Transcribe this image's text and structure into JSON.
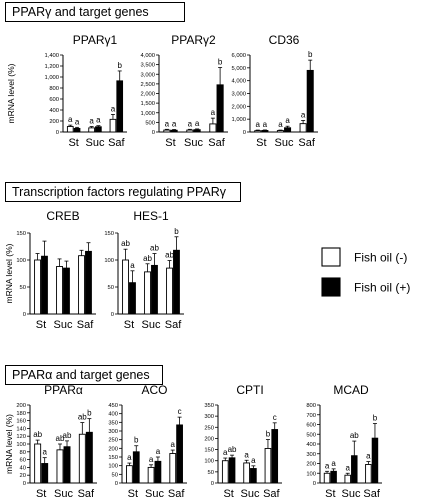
{
  "sections": [
    {
      "title": "PPARγ and target genes"
    },
    {
      "title": "Transcription factors regulating PPARγ"
    },
    {
      "title": "PPARα and target genes"
    }
  ],
  "legend": {
    "items": [
      {
        "label": "Fish oil (-)",
        "fill": "#ffffff"
      },
      {
        "label": "Fish oil (+)",
        "fill": "#000000"
      }
    ]
  },
  "chart_data": [
    {
      "type": "bar",
      "title": "PPARγ1",
      "ylabel": "mRNA level (%)",
      "ylim": [
        0,
        1400
      ],
      "yticks": [
        0,
        200,
        400,
        600,
        800,
        1000,
        1200,
        1400
      ],
      "categories": [
        "St",
        "Suc",
        "Saf"
      ],
      "series": [
        {
          "name": "Fish oil (-)",
          "values": [
            100,
            75,
            230
          ],
          "errors": [
            25,
            25,
            90
          ],
          "letters": [
            "a",
            "a",
            "a"
          ]
        },
        {
          "name": "Fish oil (+)",
          "values": [
            65,
            95,
            930
          ],
          "errors": [
            20,
            20,
            180
          ],
          "letters": [
            "a",
            "a",
            "b"
          ]
        }
      ]
    },
    {
      "type": "bar",
      "title": "PPARγ2",
      "ylabel": "",
      "ylim": [
        0,
        4000
      ],
      "yticks": [
        0,
        500,
        1000,
        1500,
        2000,
        2500,
        3000,
        3500,
        4000
      ],
      "categories": [
        "St",
        "Suc",
        "Saf"
      ],
      "series": [
        {
          "name": "Fish oil (-)",
          "values": [
            100,
            100,
            420
          ],
          "errors": [
            40,
            40,
            300
          ],
          "letters": [
            "a",
            "a",
            "a"
          ]
        },
        {
          "name": "Fish oil (+)",
          "values": [
            90,
            120,
            2450
          ],
          "errors": [
            40,
            40,
            900
          ],
          "letters": [
            "a",
            "a",
            "b"
          ]
        }
      ]
    },
    {
      "type": "bar",
      "title": "CD36",
      "ylabel": "",
      "ylim": [
        0,
        6000
      ],
      "yticks": [
        0,
        1000,
        2000,
        3000,
        4000,
        5000,
        6000
      ],
      "categories": [
        "St",
        "Suc",
        "Saf"
      ],
      "series": [
        {
          "name": "Fish oil (-)",
          "values": [
            100,
            110,
            650
          ],
          "errors": [
            50,
            40,
            250
          ],
          "letters": [
            "a",
            "a",
            "a"
          ]
        },
        {
          "name": "Fish oil (+)",
          "values": [
            120,
            330,
            4800
          ],
          "errors": [
            40,
            120,
            800
          ],
          "letters": [
            "a",
            "a",
            "b"
          ]
        }
      ]
    },
    {
      "type": "bar",
      "title": "CREB",
      "ylabel": "mRNA level (%)",
      "ylim": [
        0,
        150
      ],
      "yticks": [
        0,
        50,
        100,
        150
      ],
      "categories": [
        "St",
        "Suc",
        "Saf"
      ],
      "series": [
        {
          "name": "Fish oil (-)",
          "values": [
            100,
            88,
            108
          ],
          "errors": [
            12,
            14,
            10
          ],
          "letters": [
            "",
            "",
            ""
          ]
        },
        {
          "name": "Fish oil (+)",
          "values": [
            107,
            85,
            116
          ],
          "errors": [
            28,
            13,
            16
          ],
          "letters": [
            "",
            "",
            ""
          ]
        }
      ]
    },
    {
      "type": "bar",
      "title": "HES-1",
      "ylabel": "",
      "ylim": [
        0,
        150
      ],
      "yticks": [
        0,
        50,
        100,
        150
      ],
      "categories": [
        "St",
        "Suc",
        "Saf"
      ],
      "series": [
        {
          "name": "Fish oil (-)",
          "values": [
            100,
            78,
            85
          ],
          "errors": [
            20,
            15,
            14
          ],
          "letters": [
            "ab",
            "ab",
            "ab"
          ]
        },
        {
          "name": "Fish oil (+)",
          "values": [
            58,
            90,
            118
          ],
          "errors": [
            22,
            22,
            25
          ],
          "letters": [
            "a",
            "ab",
            "b"
          ]
        }
      ]
    },
    {
      "type": "bar",
      "title": "PPARα",
      "ylabel": "mRNA level (%)",
      "ylim": [
        0,
        200
      ],
      "yticks": [
        0,
        20,
        40,
        60,
        80,
        100,
        120,
        140,
        160,
        180,
        200
      ],
      "categories": [
        "St",
        "Suc",
        "Saf"
      ],
      "series": [
        {
          "name": "Fish oil (-)",
          "values": [
            100,
            85,
            125
          ],
          "errors": [
            10,
            15,
            30
          ],
          "letters": [
            "ab",
            "ab",
            "ab"
          ]
        },
        {
          "name": "Fish oil (+)",
          "values": [
            50,
            93,
            130
          ],
          "errors": [
            15,
            15,
            35
          ],
          "letters": [
            "a",
            "ab",
            "b"
          ]
        }
      ]
    },
    {
      "type": "bar",
      "title": "ACO",
      "ylabel": "",
      "ylim": [
        0,
        450
      ],
      "yticks": [
        0,
        50,
        100,
        150,
        200,
        250,
        300,
        350,
        400,
        450
      ],
      "categories": [
        "St",
        "Suc",
        "Saf"
      ],
      "series": [
        {
          "name": "Fish oil (-)",
          "values": [
            100,
            90,
            170
          ],
          "errors": [
            15,
            15,
            20
          ],
          "letters": [
            "a",
            "a",
            "a"
          ]
        },
        {
          "name": "Fish oil (+)",
          "values": [
            180,
            125,
            335
          ],
          "errors": [
            35,
            25,
            45
          ],
          "letters": [
            "b",
            "a",
            "c"
          ]
        }
      ]
    },
    {
      "type": "bar",
      "title": "CPTI",
      "ylabel": "",
      "ylim": [
        0,
        350
      ],
      "yticks": [
        0,
        50,
        100,
        150,
        200,
        250,
        300,
        350
      ],
      "categories": [
        "St",
        "Suc",
        "Saf"
      ],
      "series": [
        {
          "name": "Fish oil (-)",
          "values": [
            100,
            90,
            155
          ],
          "errors": [
            12,
            12,
            40
          ],
          "letters": [
            "a",
            "a",
            "b"
          ]
        },
        {
          "name": "Fish oil (+)",
          "values": [
            113,
            65,
            240
          ],
          "errors": [
            12,
            12,
            30
          ],
          "letters": [
            "ab",
            "a",
            "c"
          ]
        }
      ]
    },
    {
      "type": "bar",
      "title": "MCAD",
      "ylabel": "",
      "ylim": [
        0,
        800
      ],
      "yticks": [
        0,
        100,
        200,
        300,
        400,
        500,
        600,
        700,
        800
      ],
      "categories": [
        "St",
        "Suc",
        "Saf"
      ],
      "series": [
        {
          "name": "Fish oil (-)",
          "values": [
            100,
            80,
            190
          ],
          "errors": [
            20,
            20,
            30
          ],
          "letters": [
            "a",
            "a",
            "a"
          ]
        },
        {
          "name": "Fish oil (+)",
          "values": [
            120,
            280,
            460
          ],
          "errors": [
            25,
            150,
            150
          ],
          "letters": [
            "a",
            "ab",
            "b"
          ]
        }
      ]
    }
  ]
}
